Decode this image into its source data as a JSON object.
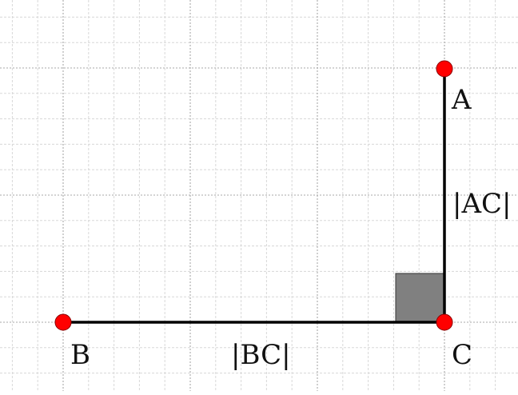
{
  "diagram": {
    "points": [
      {
        "id": "A",
        "label": "A"
      },
      {
        "id": "B",
        "label": "B"
      },
      {
        "id": "C",
        "label": "C"
      }
    ],
    "segments": [
      {
        "id": "AC",
        "from": "A",
        "to": "C",
        "label": "|AC|"
      },
      {
        "id": "BC",
        "from": "B",
        "to": "C",
        "label": "|BC|"
      }
    ],
    "right_angle_at": "C",
    "colors": {
      "point_fill": "#ff0000",
      "segment_stroke": "#000000",
      "right_angle_fill": "#808080",
      "grid_major": "#a8a8a8",
      "grid_minor": "#d8d8d8"
    }
  }
}
